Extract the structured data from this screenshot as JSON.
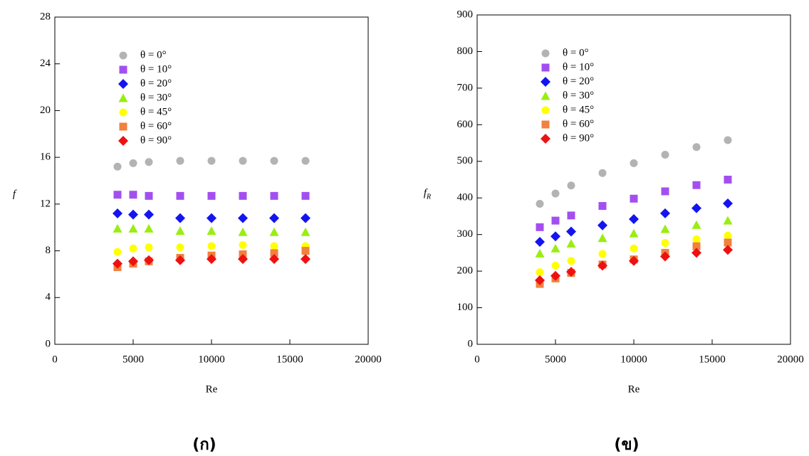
{
  "chart_data": [
    {
      "type": "scatter",
      "caption": "(ก)",
      "x_label": "Re",
      "y_label": "f",
      "x": [
        4000,
        5000,
        6000,
        8000,
        10000,
        12000,
        14000,
        16000
      ],
      "xlim": [
        0,
        20000
      ],
      "xticks": [
        0,
        5000,
        10000,
        15000,
        20000
      ],
      "ylim": [
        0,
        28
      ],
      "yticks": [
        0,
        4,
        8,
        12,
        16,
        20,
        24,
        28
      ],
      "legend": "upper left",
      "series": [
        {
          "name": "θ = 0°",
          "color": "#b3b3b3",
          "marker": "circle",
          "values": [
            15.2,
            15.5,
            15.6,
            15.7,
            15.7,
            15.7,
            15.7,
            15.7
          ]
        },
        {
          "name": "θ = 10°",
          "color": "#a34ff0",
          "marker": "square",
          "values": [
            12.8,
            12.8,
            12.7,
            12.7,
            12.7,
            12.7,
            12.7,
            12.7
          ]
        },
        {
          "name": "θ = 20°",
          "color": "#1414f0",
          "marker": "diamond",
          "values": [
            11.2,
            11.1,
            11.1,
            10.8,
            10.8,
            10.8,
            10.8,
            10.8
          ]
        },
        {
          "name": "θ = 30°",
          "color": "#99ee11",
          "marker": "triangle",
          "values": [
            9.9,
            9.9,
            9.9,
            9.7,
            9.7,
            9.6,
            9.6,
            9.6
          ]
        },
        {
          "name": "θ = 45°",
          "color": "#ffff00",
          "marker": "circle",
          "values": [
            7.9,
            8.2,
            8.3,
            8.3,
            8.4,
            8.5,
            8.4,
            8.4
          ]
        },
        {
          "name": "θ = 60°",
          "color": "#f28040",
          "marker": "square",
          "values": [
            6.6,
            6.9,
            7.1,
            7.4,
            7.6,
            7.7,
            7.8,
            8.0
          ]
        },
        {
          "name": "θ = 90°",
          "color": "#ee1111",
          "marker": "diamond",
          "values": [
            6.9,
            7.1,
            7.2,
            7.2,
            7.3,
            7.3,
            7.3,
            7.3
          ]
        }
      ]
    },
    {
      "type": "scatter",
      "caption": "(ข)",
      "x_label": "Re",
      "y_label": "f",
      "y_label_sub": "R",
      "x": [
        4000,
        5000,
        6000,
        8000,
        10000,
        12000,
        14000,
        16000
      ],
      "xlim": [
        0,
        20000
      ],
      "xticks": [
        0,
        5000,
        10000,
        15000,
        20000
      ],
      "ylim": [
        0,
        900
      ],
      "yticks": [
        0,
        100,
        200,
        300,
        400,
        500,
        600,
        700,
        800,
        900
      ],
      "legend": "upper left",
      "series": [
        {
          "name": "θ = 0°",
          "color": "#b3b3b3",
          "marker": "circle",
          "values": [
            384,
            412,
            434,
            468,
            495,
            518,
            539,
            558
          ]
        },
        {
          "name": "θ = 10°",
          "color": "#a34ff0",
          "marker": "square",
          "values": [
            320,
            338,
            352,
            378,
            398,
            418,
            435,
            450
          ]
        },
        {
          "name": "θ = 20°",
          "color": "#1414f0",
          "marker": "diamond",
          "values": [
            280,
            295,
            308,
            325,
            342,
            358,
            372,
            385
          ]
        },
        {
          "name": "θ = 30°",
          "color": "#99ee11",
          "marker": "triangle",
          "values": [
            248,
            262,
            275,
            290,
            303,
            315,
            326,
            338
          ]
        },
        {
          "name": "θ = 45°",
          "color": "#ffff00",
          "marker": "circle",
          "values": [
            197,
            215,
            228,
            247,
            262,
            277,
            287,
            297
          ]
        },
        {
          "name": "θ = 60°",
          "color": "#f28040",
          "marker": "square",
          "values": [
            165,
            180,
            195,
            218,
            232,
            250,
            268,
            278
          ]
        },
        {
          "name": "θ = 90°",
          "color": "#ee1111",
          "marker": "diamond",
          "values": [
            175,
            187,
            198,
            215,
            228,
            240,
            250,
            258
          ]
        }
      ]
    }
  ]
}
